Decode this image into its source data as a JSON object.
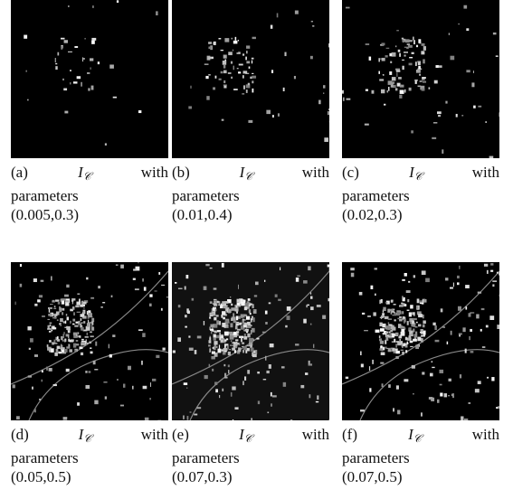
{
  "figures": [
    {
      "label": "(a)",
      "symbol": "I",
      "subscript": "𝒞",
      "word": "with",
      "text": "parameters",
      "params": "(0.005,0.3)"
    },
    {
      "label": "(b)",
      "symbol": "I",
      "subscript": "𝒞",
      "word": "with",
      "text": "parameters",
      "params": "(0.01,0.4)"
    },
    {
      "label": "(c)",
      "symbol": "I",
      "subscript": "𝒞",
      "word": "with",
      "text": "parameters",
      "params": "(0.02,0.3)"
    },
    {
      "label": "(d)",
      "symbol": "I",
      "subscript": "𝒞",
      "word": "with",
      "text": "parameters",
      "params": "(0.05,0.5)"
    },
    {
      "label": "(e)",
      "symbol": "I",
      "subscript": "𝒞",
      "word": "with",
      "text": "parameters",
      "params": "(0.07,0.3)"
    },
    {
      "label": "(f)",
      "symbol": "I",
      "subscript": "𝒞",
      "word": "with",
      "text": "parameters",
      "params": "(0.07,0.5)"
    }
  ]
}
